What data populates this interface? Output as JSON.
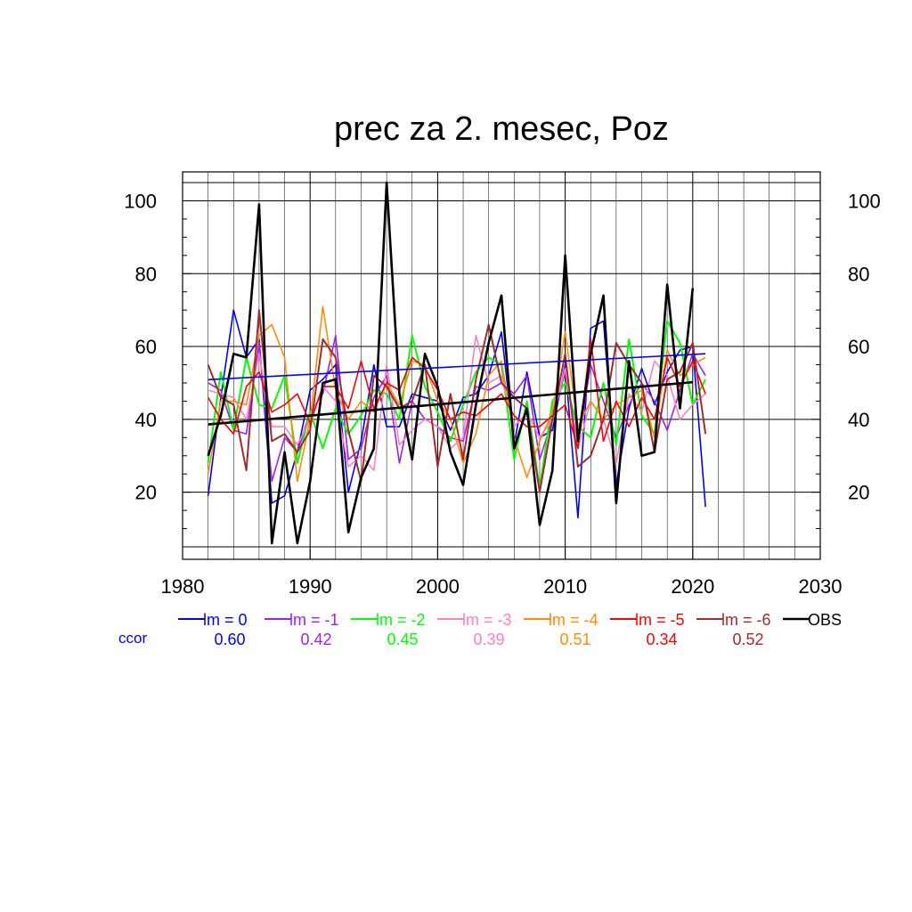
{
  "chart_data": {
    "type": "line",
    "title": "prec za 2. mesec, Poz",
    "xlabel": "",
    "ylabel": "",
    "xlim": [
      1980,
      2030
    ],
    "ylim": [
      5,
      105
    ],
    "x_ticks": [
      1980,
      1990,
      2000,
      2010,
      2020,
      2030
    ],
    "y_ticks": [
      20,
      40,
      60,
      80,
      100
    ],
    "grid": true,
    "legend_position": "bottom",
    "ccor_label": "ccor",
    "x": [
      1982,
      1983,
      1984,
      1985,
      1986,
      1987,
      1988,
      1989,
      1990,
      1991,
      1992,
      1993,
      1994,
      1995,
      1996,
      1997,
      1998,
      1999,
      2000,
      2001,
      2002,
      2003,
      2004,
      2005,
      2006,
      2007,
      2008,
      2009,
      2010,
      2011,
      2012,
      2013,
      2014,
      2015,
      2016,
      2017,
      2018,
      2019,
      2020,
      2021
    ],
    "series": [
      {
        "name": "lm = 0",
        "ccor": "0.60",
        "color": "#0000ff",
        "width": 1.6,
        "values": [
          19,
          46,
          70,
          57,
          62,
          17,
          19,
          31,
          48,
          51,
          55,
          20,
          34,
          55,
          38,
          38,
          47,
          46,
          45,
          37,
          46,
          47,
          52,
          64,
          33,
          53,
          35,
          37,
          55,
          13,
          65,
          67,
          22,
          43,
          54,
          44,
          53,
          59,
          60,
          16
        ]
      },
      {
        "name": "lm = -1",
        "ccor": "0.42",
        "color": "#a020f0",
        "width": 1.6,
        "values": [
          50,
          48,
          37,
          36,
          61,
          23,
          35,
          31,
          42,
          47,
          63,
          29,
          32,
          46,
          52,
          28,
          45,
          40,
          38,
          35,
          34,
          49,
          48,
          50,
          47,
          52,
          29,
          40,
          53,
          33,
          55,
          45,
          35,
          44,
          50,
          45,
          37,
          48,
          58,
          52
        ]
      },
      {
        "name": "lm = -2",
        "ccor": "0.45",
        "color": "#00ff00",
        "width": 2,
        "values": [
          28,
          53,
          37,
          57,
          44,
          43,
          52,
          28,
          42,
          32,
          43,
          36,
          41,
          48,
          47,
          40,
          63,
          49,
          42,
          34,
          44,
          53,
          57,
          55,
          29,
          45,
          21,
          45,
          50,
          38,
          35,
          50,
          33,
          62,
          41,
          36,
          67,
          61,
          44,
          51
        ]
      },
      {
        "name": "lm = -3",
        "ccor": "0.39",
        "color": "#ff7fbf",
        "width": 1.6,
        "values": [
          48,
          47,
          46,
          40,
          58,
          38,
          38,
          33,
          40,
          49,
          45,
          27,
          30,
          26,
          55,
          33,
          37,
          40,
          38,
          32,
          35,
          63,
          50,
          52,
          38,
          42,
          35,
          40,
          54,
          32,
          45,
          40,
          28,
          47,
          42,
          56,
          52,
          40,
          44,
          47
        ]
      },
      {
        "name": "lm = -4",
        "ccor": "0.51",
        "color": "#ff8c00",
        "width": 1.6,
        "values": [
          25,
          45,
          45,
          44,
          63,
          66,
          57,
          23,
          40,
          71,
          48,
          40,
          45,
          42,
          50,
          44,
          56,
          55,
          45,
          40,
          28,
          36,
          52,
          56,
          35,
          24,
          34,
          42,
          64,
          38,
          45,
          40,
          44,
          46,
          48,
          35,
          59,
          52,
          55,
          57
        ]
      },
      {
        "name": "lm = -5",
        "ccor": "0.34",
        "color": "#ff0000",
        "width": 1.6,
        "values": [
          46,
          40,
          36,
          49,
          53,
          42,
          44,
          47,
          39,
          49,
          49,
          43,
          56,
          43,
          50,
          48,
          57,
          54,
          48,
          40,
          42,
          41,
          44,
          47,
          41,
          38,
          38,
          41,
          44,
          32,
          62,
          34,
          45,
          38,
          46,
          40,
          57,
          49,
          56,
          47
        ]
      },
      {
        "name": "lm = -6",
        "ccor": "0.52",
        "color": "#a52a2a",
        "width": 2,
        "values": [
          55,
          46,
          44,
          26,
          70,
          34,
          36,
          31,
          37,
          62,
          57,
          37,
          23,
          52,
          49,
          43,
          45,
          55,
          27,
          47,
          29,
          51,
          66,
          50,
          46,
          43,
          20,
          40,
          58,
          27,
          30,
          40,
          61,
          55,
          50,
          31,
          51,
          53,
          61,
          36
        ]
      },
      {
        "name": "OBS",
        "ccor": "",
        "color": "#000000",
        "width": 2.6,
        "values": [
          30,
          41,
          58,
          57,
          99,
          6,
          31,
          6,
          23,
          50,
          51,
          9,
          24,
          32,
          105,
          47,
          29,
          58,
          49,
          31,
          22,
          44,
          61,
          74,
          32,
          43,
          11,
          26,
          85,
          34,
          58,
          74,
          17,
          56,
          30,
          31,
          77,
          43,
          76,
          null
        ]
      }
    ],
    "trends": [
      {
        "name": "lm = 0",
        "color": "#0000ff",
        "x": [
          1982,
          2021
        ],
        "y": [
          50.9,
          58.0
        ]
      },
      {
        "name": "OBS",
        "color": "#000000",
        "x": [
          1982,
          2020
        ],
        "y": [
          38.6,
          50.2
        ]
      }
    ]
  }
}
